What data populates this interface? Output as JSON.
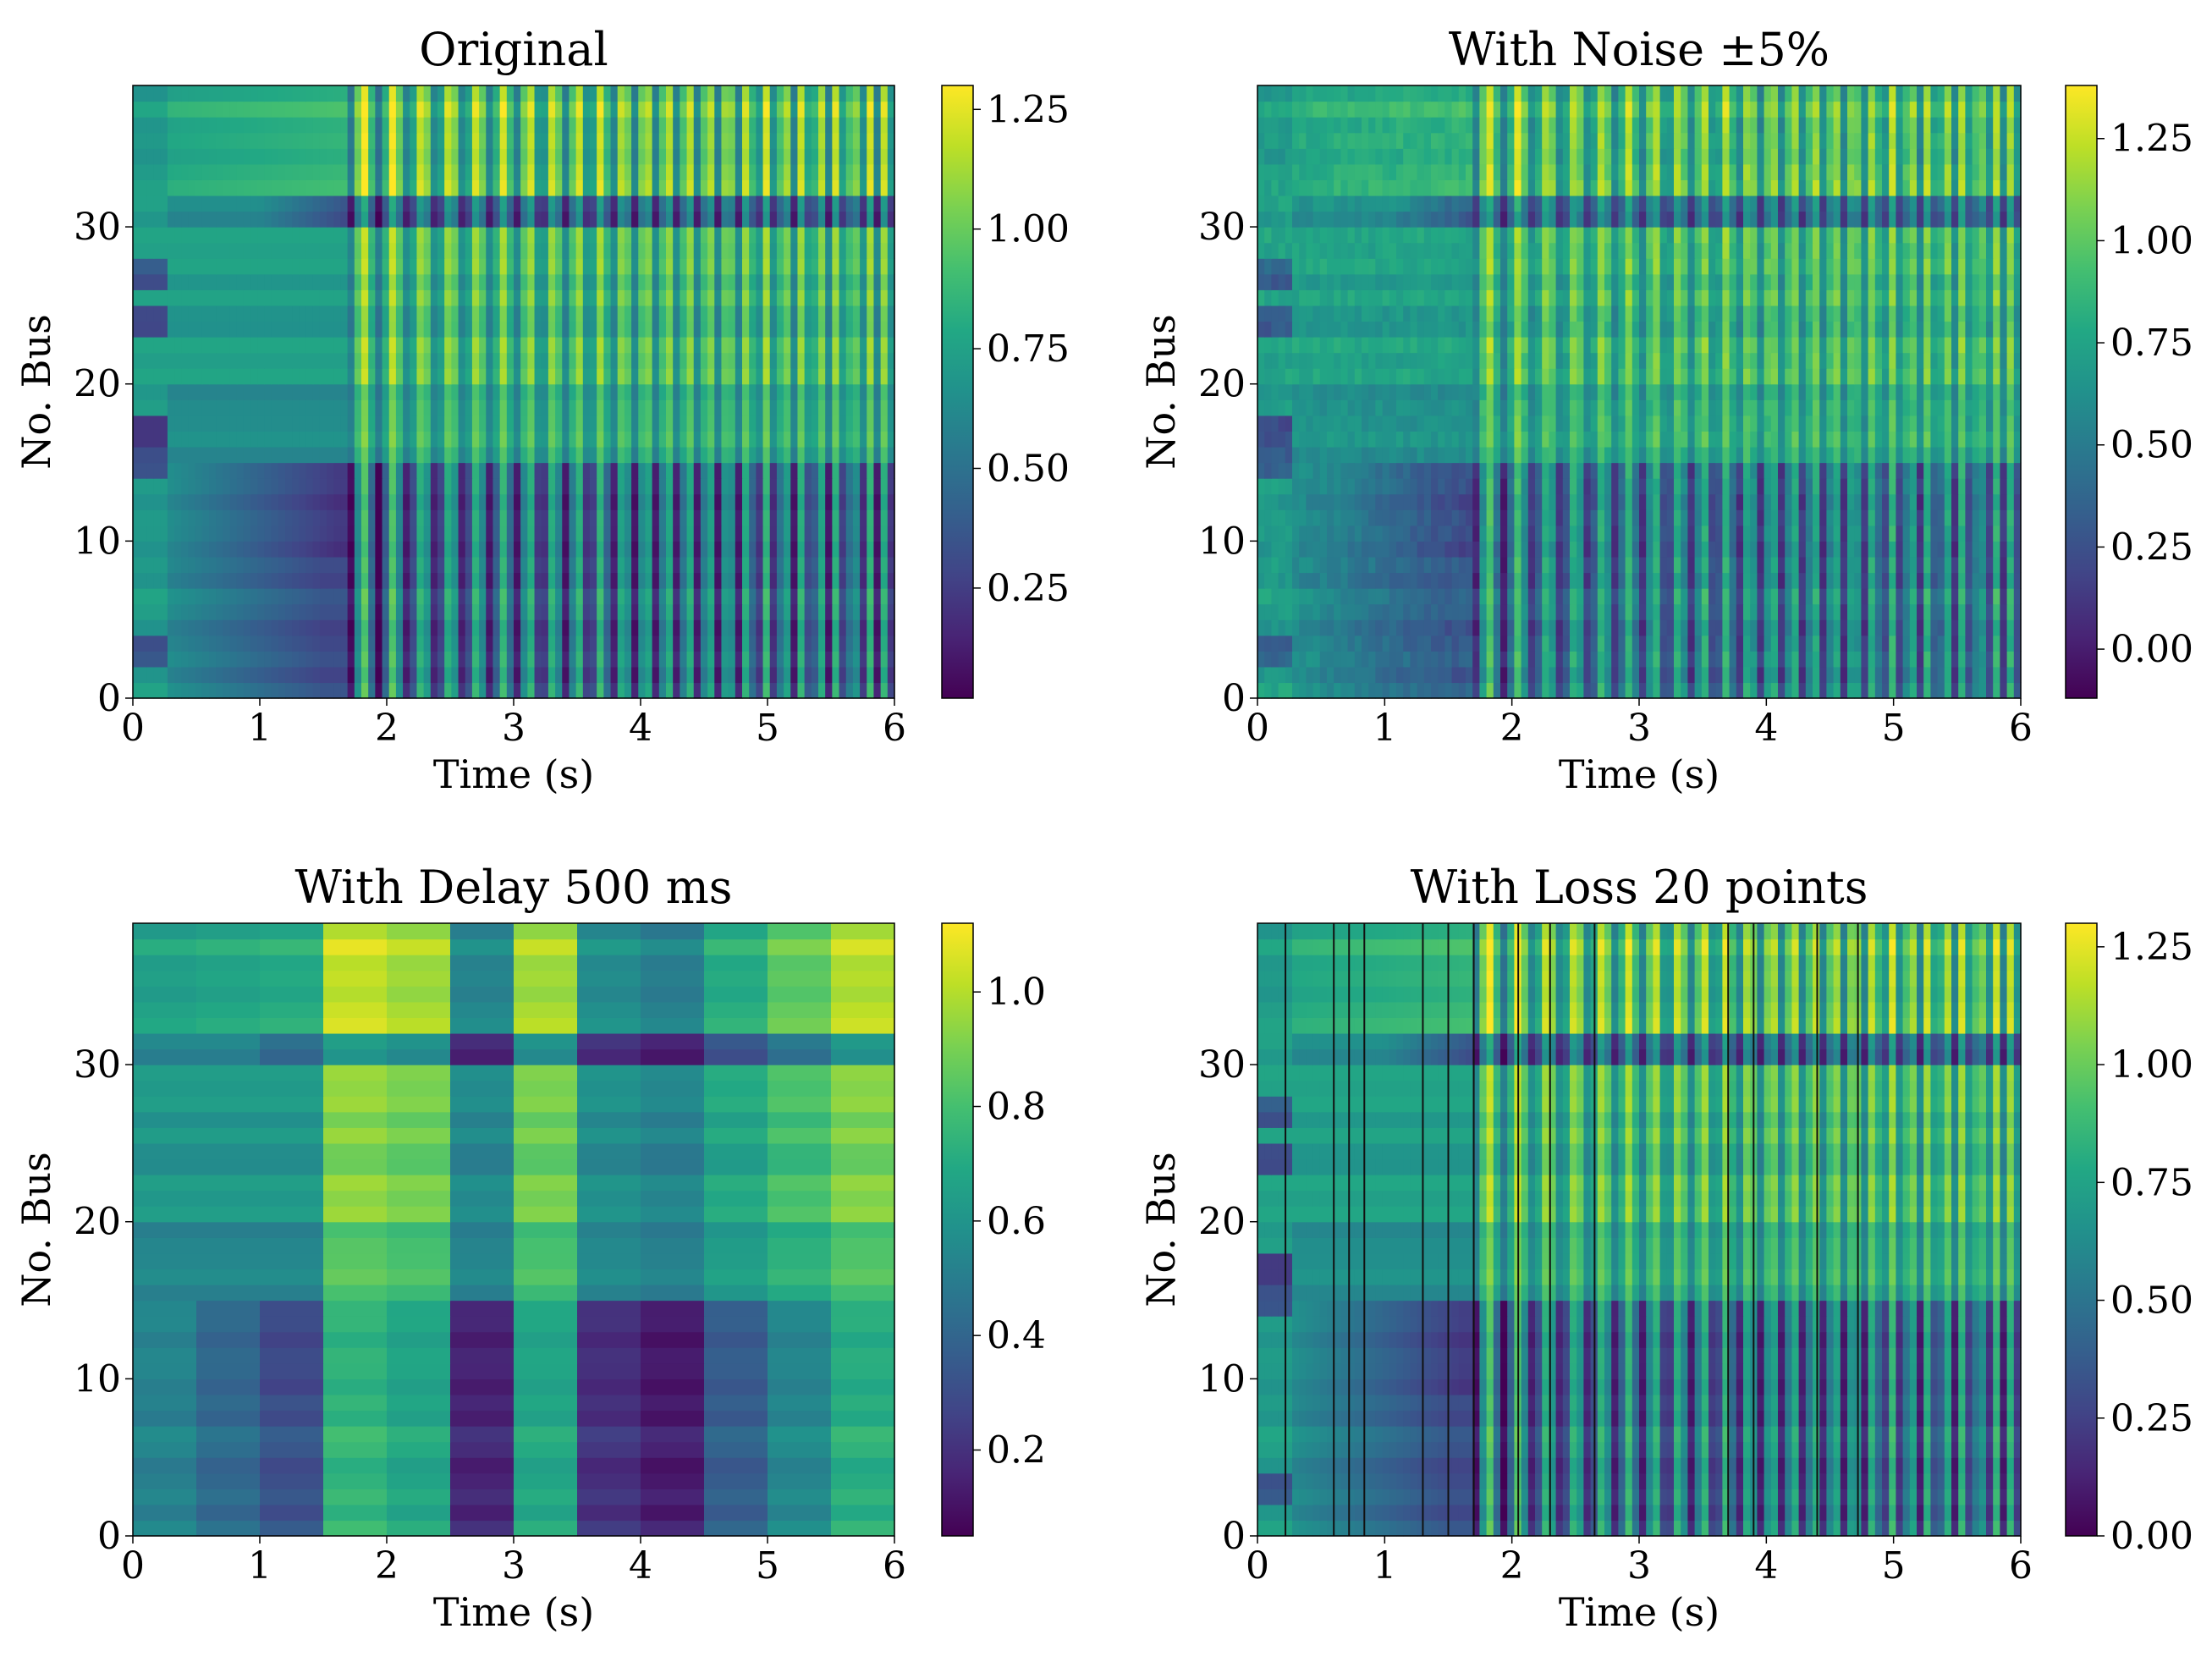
{
  "figure": {
    "description_free": true
  },
  "chart_data": [
    {
      "type": "heatmap",
      "title": "Original",
      "xlabel": "Time (s)",
      "ylabel": "No. Bus",
      "xlim": [
        0,
        6
      ],
      "ylim": [
        0,
        39
      ],
      "xticks": [
        "0",
        "1",
        "2",
        "3",
        "4",
        "5",
        "6"
      ],
      "yticks": [
        "0",
        "10",
        "20",
        "30"
      ],
      "colorbar": {
        "range": [
          0.02,
          1.3
        ],
        "ticks": [
          "0.25",
          "0.50",
          "0.75",
          "1.00",
          "1.25"
        ],
        "tick_values": [
          0.25,
          0.5,
          0.75,
          1.0,
          1.25
        ]
      },
      "colormap": "viridis",
      "variant": "original",
      "time_bins": 110,
      "bus_count": 39
    },
    {
      "type": "heatmap",
      "title": "With Noise ±5%",
      "xlabel": "Time (s)",
      "ylabel": "No. Bus",
      "xlim": [
        0,
        6
      ],
      "ylim": [
        0,
        39
      ],
      "xticks": [
        "0",
        "1",
        "2",
        "3",
        "4",
        "5",
        "6"
      ],
      "yticks": [
        "0",
        "10",
        "20",
        "30"
      ],
      "colorbar": {
        "range": [
          -0.12,
          1.38
        ],
        "ticks": [
          "0.00",
          "0.25",
          "0.50",
          "0.75",
          "1.00",
          "1.25"
        ],
        "tick_values": [
          0,
          0.25,
          0.5,
          0.75,
          1.0,
          1.25
        ]
      },
      "colormap": "viridis",
      "variant": "noise",
      "time_bins": 110,
      "bus_count": 39
    },
    {
      "type": "heatmap",
      "title": "With Delay 500 ms",
      "xlabel": "Time (s)",
      "ylabel": "No. Bus",
      "xlim": [
        0,
        6
      ],
      "ylim": [
        0,
        39
      ],
      "xticks": [
        "0",
        "1",
        "2",
        "3",
        "4",
        "5",
        "6"
      ],
      "yticks": [
        "0",
        "10",
        "20",
        "30"
      ],
      "colorbar": {
        "range": [
          0.05,
          1.12
        ],
        "ticks": [
          "0.2",
          "0.4",
          "0.6",
          "0.8",
          "1.0"
        ],
        "tick_values": [
          0.2,
          0.4,
          0.6,
          0.8,
          1.0
        ]
      },
      "colormap": "viridis",
      "variant": "delay",
      "time_bins": 12,
      "bus_count": 39
    },
    {
      "type": "heatmap",
      "title": "With Loss 20 points",
      "xlabel": "Time (s)",
      "ylabel": "No. Bus",
      "xlim": [
        0,
        6
      ],
      "ylim": [
        0,
        39
      ],
      "xticks": [
        "0",
        "1",
        "2",
        "3",
        "4",
        "5",
        "6"
      ],
      "yticks": [
        "0",
        "10",
        "20",
        "30"
      ],
      "colorbar": {
        "range": [
          0.0,
          1.3
        ],
        "ticks": [
          "0.00",
          "0.25",
          "0.50",
          "0.75",
          "1.00",
          "1.25"
        ],
        "tick_values": [
          0,
          0.25,
          0.5,
          0.75,
          1.0,
          1.25
        ]
      },
      "colormap": "viridis",
      "variant": "loss",
      "time_bins": 110,
      "bus_count": 39,
      "loss_times_s": [
        0.22,
        0.6,
        0.72,
        0.84,
        1.3,
        1.5,
        1.7,
        2.05,
        2.3,
        2.65,
        3.7,
        3.9,
        4.4,
        4.72
      ]
    }
  ]
}
